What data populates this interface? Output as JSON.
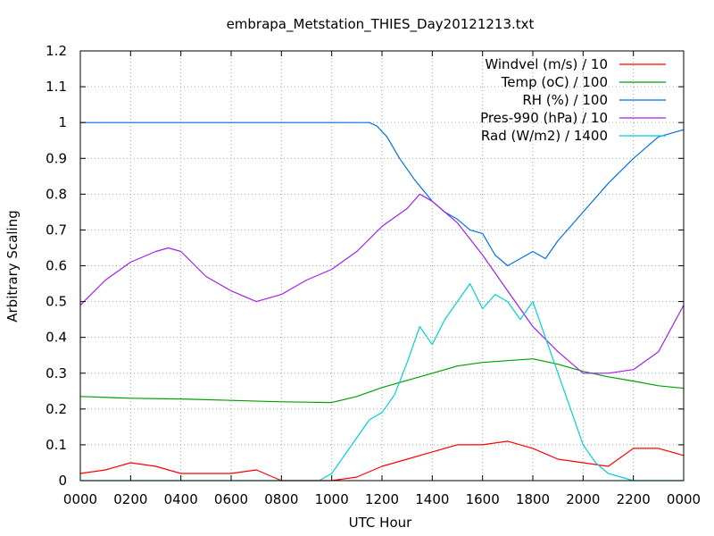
{
  "chart_data": {
    "type": "line",
    "title": "embrapa_Metstation_THIES_Day20121213.txt",
    "xlabel": "UTC Hour",
    "ylabel": "Arbitrary Scaling",
    "xlim": [
      0,
      2400
    ],
    "ylim": [
      0,
      1.2
    ],
    "grid": true,
    "legend_position": "top-right",
    "x_ticks": [
      "0000",
      "0200",
      "0400",
      "0600",
      "0800",
      "1000",
      "1200",
      "1400",
      "1600",
      "1800",
      "2000",
      "2200",
      "0000"
    ],
    "y_ticks": [
      "0",
      "0.1",
      "0.2",
      "0.3",
      "0.4",
      "0.5",
      "0.6",
      "0.7",
      "0.8",
      "0.9",
      "1",
      "1.1",
      "1.2"
    ],
    "series": [
      {
        "name": "Windvel (m/s) / 10",
        "color": "#ff0000",
        "x": [
          0,
          100,
          200,
          300,
          400,
          500,
          600,
          700,
          800,
          900,
          1000,
          1100,
          1200,
          1300,
          1400,
          1500,
          1600,
          1700,
          1800,
          1900,
          2000,
          2100,
          2200,
          2300,
          2400
        ],
        "y": [
          0.02,
          0.03,
          0.05,
          0.04,
          0.02,
          0.02,
          0.02,
          0.03,
          0.0,
          0.0,
          0.0,
          0.01,
          0.04,
          0.06,
          0.08,
          0.1,
          0.1,
          0.11,
          0.09,
          0.06,
          0.05,
          0.04,
          0.09,
          0.09,
          0.07
        ]
      },
      {
        "name": "Temp (oC) / 100",
        "color": "#00a000",
        "x": [
          0,
          200,
          400,
          600,
          800,
          900,
          1000,
          1100,
          1200,
          1300,
          1400,
          1500,
          1600,
          1700,
          1800,
          1900,
          2000,
          2100,
          2200,
          2300,
          2400
        ],
        "y": [
          0.235,
          0.23,
          0.228,
          0.224,
          0.22,
          0.219,
          0.218,
          0.235,
          0.26,
          0.28,
          0.3,
          0.32,
          0.33,
          0.335,
          0.34,
          0.325,
          0.305,
          0.29,
          0.278,
          0.265,
          0.258
        ]
      },
      {
        "name": "RH (%) / 100",
        "color": "#0070e0",
        "x": [
          0,
          200,
          400,
          600,
          800,
          1000,
          1150,
          1180,
          1220,
          1270,
          1330,
          1400,
          1450,
          1500,
          1550,
          1600,
          1650,
          1700,
          1750,
          1800,
          1850,
          1900,
          1950,
          2000,
          2100,
          2200,
          2300,
          2400
        ],
        "y": [
          1.0,
          1.0,
          1.0,
          1.0,
          1.0,
          1.0,
          1.0,
          0.99,
          0.96,
          0.9,
          0.84,
          0.78,
          0.75,
          0.73,
          0.7,
          0.69,
          0.63,
          0.6,
          0.62,
          0.64,
          0.62,
          0.67,
          0.71,
          0.75,
          0.83,
          0.9,
          0.96,
          0.98
        ]
      },
      {
        "name": "Pres-990 (hPa) / 10",
        "color": "#a020f0",
        "x": [
          0,
          100,
          200,
          300,
          350,
          400,
          500,
          600,
          700,
          800,
          900,
          1000,
          1100,
          1200,
          1300,
          1350,
          1400,
          1500,
          1600,
          1700,
          1800,
          1900,
          2000,
          2100,
          2200,
          2300,
          2400
        ],
        "y": [
          0.49,
          0.56,
          0.61,
          0.64,
          0.65,
          0.64,
          0.57,
          0.53,
          0.5,
          0.52,
          0.56,
          0.59,
          0.64,
          0.71,
          0.76,
          0.8,
          0.78,
          0.72,
          0.63,
          0.53,
          0.43,
          0.36,
          0.3,
          0.3,
          0.31,
          0.36,
          0.49
        ]
      },
      {
        "name": "Rad (W/m2) / 1400",
        "color": "#00d0d0",
        "x": [
          0,
          200,
          400,
          600,
          800,
          900,
          950,
          1000,
          1050,
          1100,
          1150,
          1200,
          1250,
          1300,
          1350,
          1400,
          1450,
          1500,
          1550,
          1600,
          1650,
          1700,
          1750,
          1800,
          1850,
          1900,
          1950,
          2000,
          2050,
          2100,
          2200,
          2400
        ],
        "y": [
          0.0,
          0.0,
          0.0,
          0.0,
          0.0,
          0.0,
          0.0,
          0.02,
          0.07,
          0.12,
          0.17,
          0.19,
          0.24,
          0.33,
          0.43,
          0.38,
          0.45,
          0.5,
          0.55,
          0.48,
          0.52,
          0.5,
          0.45,
          0.5,
          0.4,
          0.3,
          0.2,
          0.1,
          0.05,
          0.02,
          0.0,
          0.0
        ]
      }
    ]
  }
}
